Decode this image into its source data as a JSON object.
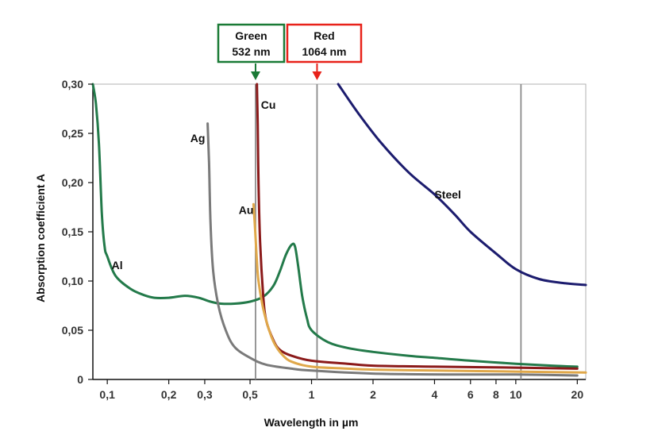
{
  "chart_data": {
    "type": "line",
    "xlabel": "Wavelength in µm",
    "ylabel": "Absorption coefficient A",
    "x_scale": "log",
    "xlim": [
      0.085,
      22
    ],
    "ylim": [
      0,
      0.3
    ],
    "grid": false,
    "x_ticks": [
      {
        "value": 0.1,
        "label": "0,1"
      },
      {
        "value": 0.2,
        "label": "0,2"
      },
      {
        "value": 0.3,
        "label": "0,3"
      },
      {
        "value": 0.5,
        "label": "0,5"
      },
      {
        "value": 1,
        "label": "1"
      },
      {
        "value": 2,
        "label": "2"
      },
      {
        "value": 4,
        "label": "4"
      },
      {
        "value": 6,
        "label": "6"
      },
      {
        "value": 8,
        "label": "8"
      },
      {
        "value": 10,
        "label": "10"
      },
      {
        "value": 20,
        "label": "20"
      }
    ],
    "y_ticks": [
      {
        "value": 0,
        "label": "0"
      },
      {
        "value": 0.05,
        "label": "0,05"
      },
      {
        "value": 0.1,
        "label": "0,10"
      },
      {
        "value": 0.15,
        "label": "0,15"
      },
      {
        "value": 0.2,
        "label": "0,20"
      },
      {
        "value": 0.25,
        "label": "0,25"
      },
      {
        "value": 0.3,
        "label": "0,30"
      }
    ],
    "vertical_lines": [
      0.532,
      1.064,
      10.6
    ],
    "markers": [
      {
        "line1": "Green",
        "line2": "532 nm",
        "x": 0.532,
        "color": "#1a7a36"
      },
      {
        "line1": "Red",
        "line2": "1064 nm",
        "x": 1.064,
        "color": "#e8221a"
      }
    ],
    "series": [
      {
        "name": "Al",
        "color": "#237a4a",
        "label_at": [
          0.105,
          0.112
        ],
        "points": [
          [
            0.085,
            0.3
          ],
          [
            0.088,
            0.28
          ],
          [
            0.091,
            0.24
          ],
          [
            0.094,
            0.17
          ],
          [
            0.097,
            0.135
          ],
          [
            0.1,
            0.125
          ],
          [
            0.11,
            0.105
          ],
          [
            0.13,
            0.092
          ],
          [
            0.15,
            0.086
          ],
          [
            0.17,
            0.083
          ],
          [
            0.2,
            0.083
          ],
          [
            0.24,
            0.085
          ],
          [
            0.28,
            0.083
          ],
          [
            0.32,
            0.079
          ],
          [
            0.36,
            0.077
          ],
          [
            0.42,
            0.077
          ],
          [
            0.5,
            0.079
          ],
          [
            0.58,
            0.084
          ],
          [
            0.65,
            0.095
          ],
          [
            0.7,
            0.11
          ],
          [
            0.75,
            0.127
          ],
          [
            0.8,
            0.137
          ],
          [
            0.83,
            0.135
          ],
          [
            0.86,
            0.115
          ],
          [
            0.9,
            0.085
          ],
          [
            0.95,
            0.062
          ],
          [
            1.0,
            0.05
          ],
          [
            1.2,
            0.038
          ],
          [
            1.5,
            0.032
          ],
          [
            2.0,
            0.028
          ],
          [
            3.0,
            0.024
          ],
          [
            4.0,
            0.022
          ],
          [
            6.0,
            0.019
          ],
          [
            10.0,
            0.016
          ],
          [
            15.0,
            0.014
          ],
          [
            20.0,
            0.013
          ]
        ]
      },
      {
        "name": "Ag",
        "color": "#7a7a7a",
        "label_at": [
          0.255,
          0.241
        ],
        "points": [
          [
            0.31,
            0.26
          ],
          [
            0.315,
            0.22
          ],
          [
            0.32,
            0.16
          ],
          [
            0.33,
            0.11
          ],
          [
            0.35,
            0.075
          ],
          [
            0.38,
            0.05
          ],
          [
            0.42,
            0.033
          ],
          [
            0.5,
            0.022
          ],
          [
            0.6,
            0.015
          ],
          [
            0.8,
            0.011
          ],
          [
            1.0,
            0.009
          ],
          [
            2.0,
            0.006
          ],
          [
            5.0,
            0.005
          ],
          [
            10.0,
            0.005
          ],
          [
            20.0,
            0.004
          ]
        ]
      },
      {
        "name": "Cu",
        "color": "#8b1a1a",
        "label_at": [
          0.565,
          0.275
        ],
        "points": [
          [
            0.54,
            0.3
          ],
          [
            0.545,
            0.26
          ],
          [
            0.55,
            0.2
          ],
          [
            0.56,
            0.14
          ],
          [
            0.58,
            0.085
          ],
          [
            0.6,
            0.06
          ],
          [
            0.65,
            0.04
          ],
          [
            0.7,
            0.03
          ],
          [
            0.8,
            0.024
          ],
          [
            1.0,
            0.019
          ],
          [
            1.5,
            0.016
          ],
          [
            2.0,
            0.014
          ],
          [
            4.0,
            0.013
          ],
          [
            10.0,
            0.012
          ],
          [
            20.0,
            0.011
          ]
        ]
      },
      {
        "name": "Au",
        "color": "#e0a84a",
        "label_at": [
          0.44,
          0.168
        ],
        "points": [
          [
            0.52,
            0.178
          ],
          [
            0.53,
            0.15
          ],
          [
            0.54,
            0.12
          ],
          [
            0.55,
            0.1
          ],
          [
            0.58,
            0.072
          ],
          [
            0.62,
            0.05
          ],
          [
            0.66,
            0.036
          ],
          [
            0.72,
            0.025
          ],
          [
            0.8,
            0.018
          ],
          [
            1.0,
            0.013
          ],
          [
            1.5,
            0.011
          ],
          [
            2.0,
            0.01
          ],
          [
            4.0,
            0.009
          ],
          [
            10.0,
            0.008
          ],
          [
            22.0,
            0.007
          ]
        ]
      },
      {
        "name": "Steel",
        "color": "#1c1c6e",
        "label_at": [
          4.0,
          0.184
        ],
        "points": [
          [
            1.35,
            0.3
          ],
          [
            1.7,
            0.27
          ],
          [
            2.2,
            0.24
          ],
          [
            3.0,
            0.21
          ],
          [
            4.0,
            0.188
          ],
          [
            5.0,
            0.168
          ],
          [
            6.0,
            0.15
          ],
          [
            8.0,
            0.128
          ],
          [
            10.0,
            0.112
          ],
          [
            13.0,
            0.102
          ],
          [
            17.0,
            0.098
          ],
          [
            22.0,
            0.096
          ]
        ]
      }
    ]
  }
}
